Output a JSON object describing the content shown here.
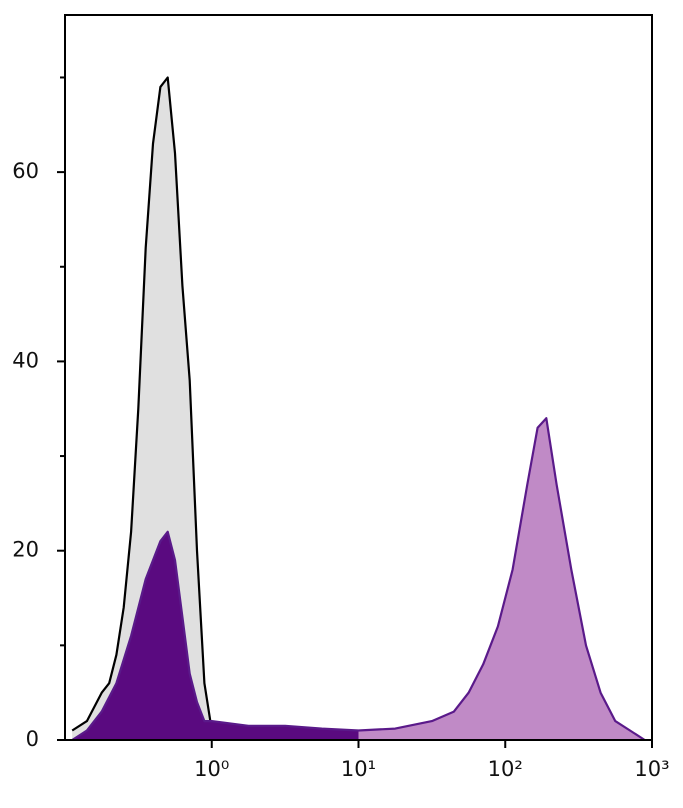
{
  "chart_data": {
    "type": "area",
    "xscale": "log",
    "xlim": [
      0.1,
      1000
    ],
    "xticks": [
      {
        "value": 1,
        "label": "10⁰"
      },
      {
        "value": 10,
        "label": "10¹"
      },
      {
        "value": 100,
        "label": "10²"
      },
      {
        "value": 1000,
        "label": "10³"
      }
    ],
    "ylim": [
      0,
      76.6
    ],
    "yticks": [
      0,
      20,
      40,
      60
    ],
    "yminorticks": [
      10,
      30,
      50,
      70
    ],
    "series": [
      {
        "color": "#000000",
        "fill": "#e0e0e0",
        "x": [
          0.112,
          0.141,
          0.178,
          0.2,
          0.224,
          0.251,
          0.282,
          0.316,
          0.355,
          0.398,
          0.447,
          0.501,
          0.562,
          0.631,
          0.708,
          0.794,
          0.891,
          1.0,
          1.122
        ],
        "values": [
          1,
          2,
          5,
          6,
          9,
          14,
          22,
          35,
          52,
          63,
          69,
          70,
          62,
          48,
          38,
          20,
          6,
          1,
          0
        ]
      },
      {
        "color": "#5a1a8a",
        "fill": "#c08ac6",
        "fill_low": "#5a0a80",
        "fill_split": 10,
        "x": [
          0.112,
          0.141,
          0.178,
          0.224,
          0.282,
          0.355,
          0.447,
          0.501,
          0.562,
          0.631,
          0.708,
          0.794,
          0.891,
          1.0,
          1.778,
          3.162,
          5.623,
          10,
          17.78,
          31.62,
          44.67,
          56.23,
          70.79,
          89.13,
          112.2,
          141.3,
          166,
          190.5,
          223.9,
          281.8,
          354.8,
          446.7,
          562.3,
          707.9,
          891.3
        ],
        "values": [
          0,
          1,
          3,
          6,
          11,
          17,
          21,
          22,
          19,
          13,
          7,
          4,
          2,
          2,
          1.5,
          1.5,
          1.2,
          1,
          1.2,
          2,
          3,
          5,
          8,
          12,
          18,
          27,
          33,
          34,
          27,
          18,
          10,
          5,
          2,
          1,
          0
        ]
      }
    ]
  }
}
